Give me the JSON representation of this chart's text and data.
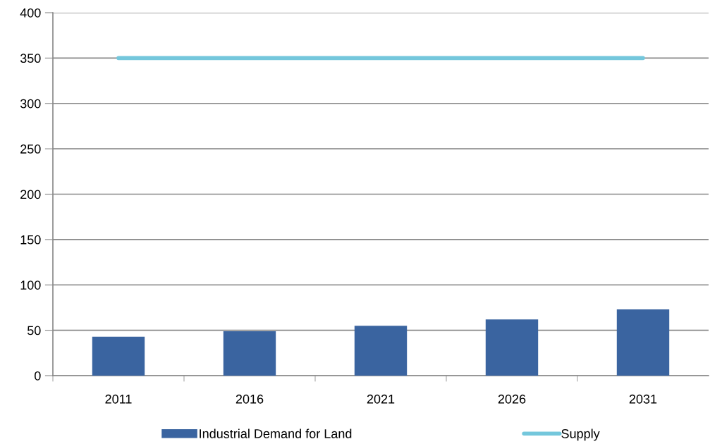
{
  "chart_data": {
    "type": "bar",
    "categories": [
      "2011",
      "2016",
      "2021",
      "2026",
      "2031"
    ],
    "series": [
      {
        "name": "Industrial Demand for Land",
        "color": "#3a64a0",
        "values": [
          43,
          49,
          55,
          62,
          73
        ]
      },
      {
        "name": "Supply",
        "type": "line",
        "color": "#74c7dc",
        "values": [
          350,
          350,
          350,
          350,
          350
        ]
      }
    ],
    "ylim": [
      0,
      400
    ],
    "yticks": [
      0,
      50,
      100,
      150,
      200,
      250,
      300,
      350,
      400
    ],
    "grid": "y",
    "legend": "bottom"
  }
}
